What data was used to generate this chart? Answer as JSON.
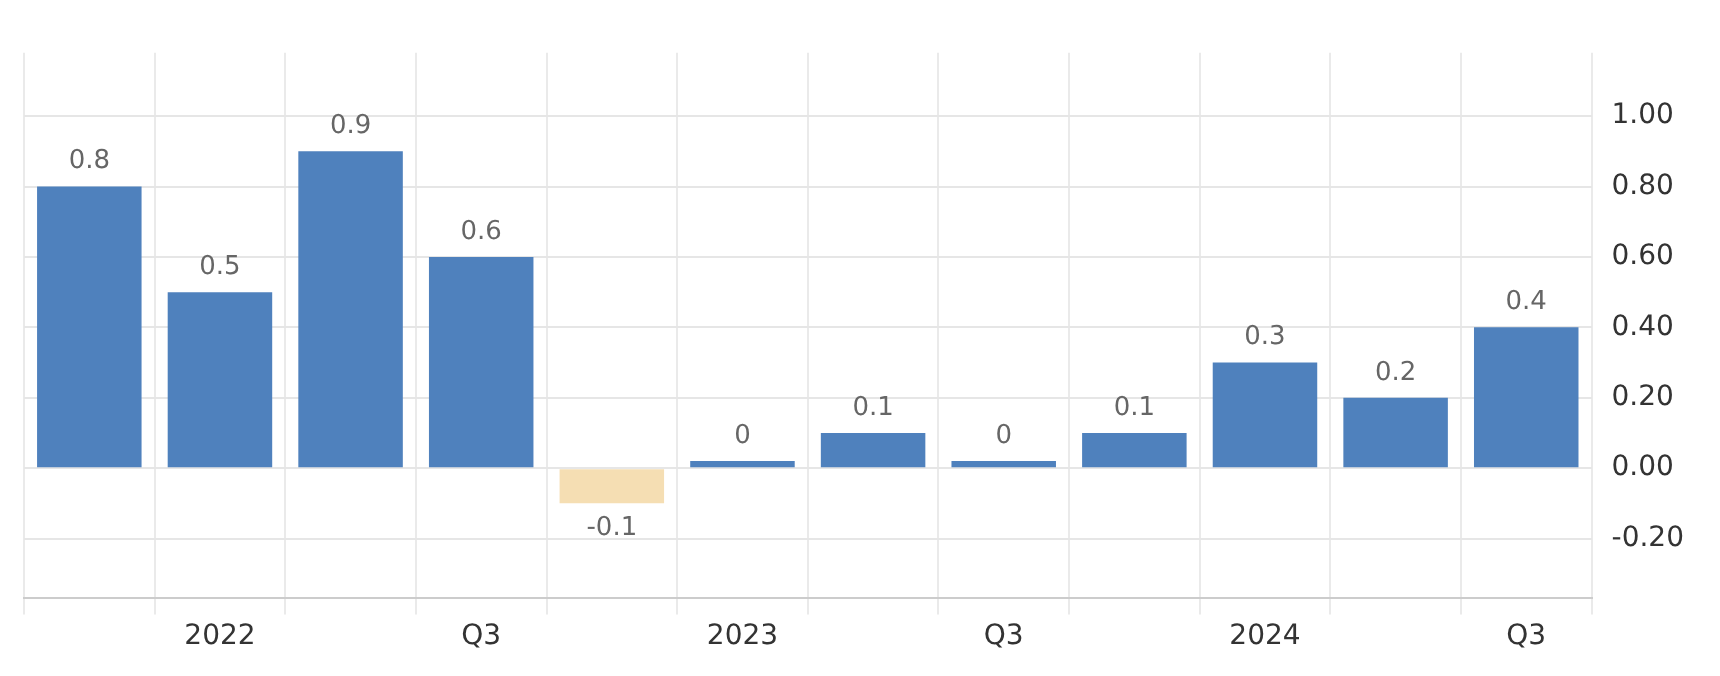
{
  "chart_data": {
    "type": "bar",
    "categories": [
      null,
      "2022",
      null,
      "Q3",
      null,
      "2023",
      null,
      "Q3",
      null,
      "2024",
      null,
      "Q3"
    ],
    "values": [
      0.8,
      0.5,
      0.9,
      0.6,
      -0.1,
      0.02,
      0.1,
      0.02,
      0.1,
      0.3,
      0.2,
      0.4
    ],
    "colors": [
      "#4f81bd",
      "#4f81bd",
      "#4f81bd",
      "#4f81bd",
      "#f5deb3",
      "#4f81bd",
      "#4f81bd",
      "#4f81bd",
      "#4f81bd",
      "#4f81bd",
      "#4f81bd",
      "#4f81bd"
    ],
    "value_labels": [
      "0.8",
      "0.5",
      "0.9",
      "0.6",
      "-0.1",
      "0",
      "0.1",
      "0",
      "0.1",
      "0.3",
      "0.2",
      "0.4"
    ],
    "ylim": [
      -0.37,
      1.18
    ],
    "yticks": [
      {
        "value": -0.2,
        "label": "-0.20"
      },
      {
        "value": 0,
        "label": "0.00"
      },
      {
        "value": 0.2,
        "label": "0.20"
      },
      {
        "value": 0.4,
        "label": "0.40"
      },
      {
        "value": 0.6,
        "label": "0.60"
      },
      {
        "value": 0.8,
        "label": "0.80"
      },
      {
        "value": 1,
        "label": "1.00"
      }
    ],
    "grid": true,
    "legend": false
  }
}
